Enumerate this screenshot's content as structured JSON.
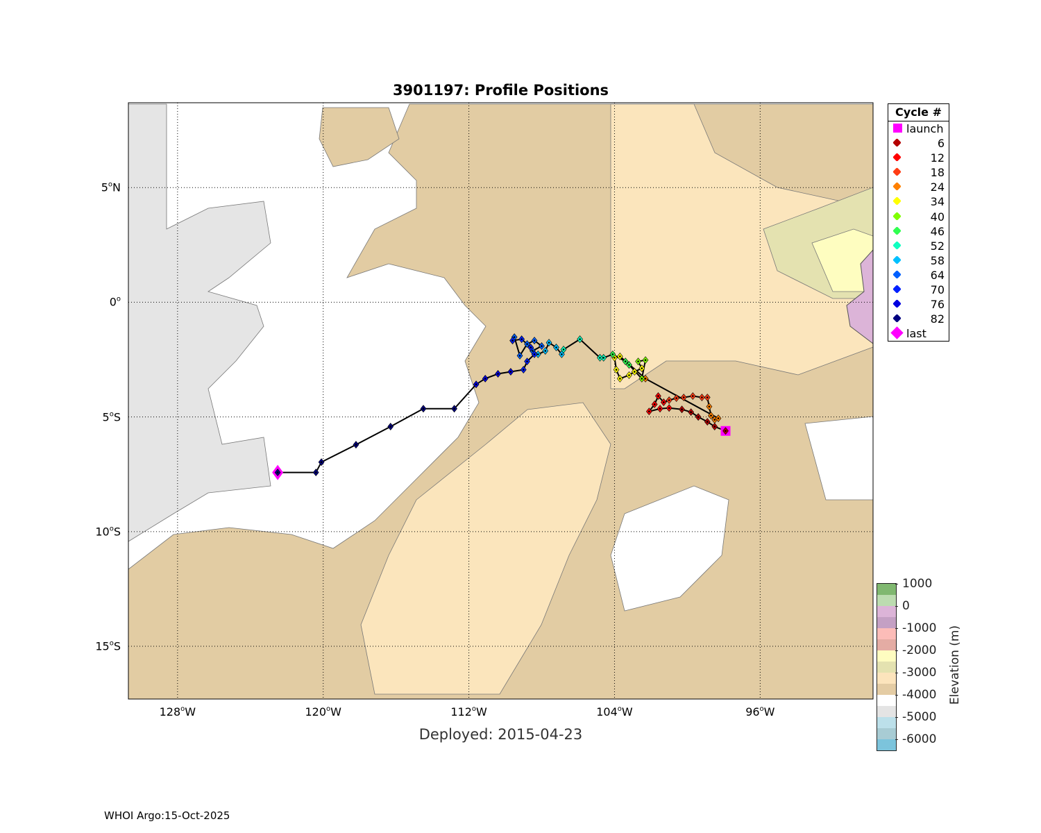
{
  "chart_data": {
    "type": "scatter",
    "title": "3901197: Profile Positions",
    "subtitle": "Deployed: 2015-04-23",
    "xlim": [
      -130.7,
      -89.8
    ],
    "ylim": [
      -17.3,
      8.7
    ],
    "grid": true,
    "x_ticks": [
      {
        "value": -128,
        "num": "128",
        "hemi": "W"
      },
      {
        "value": -120,
        "num": "120",
        "hemi": "W"
      },
      {
        "value": -112,
        "num": "112",
        "hemi": "W"
      },
      {
        "value": -104,
        "num": "104",
        "hemi": "W"
      },
      {
        "value": -96,
        "num": "96",
        "hemi": "W"
      }
    ],
    "y_ticks": [
      {
        "value": 5,
        "num": "5",
        "hemi": "N"
      },
      {
        "value": 0,
        "num": "0",
        "hemi": ""
      },
      {
        "value": -5,
        "num": "5",
        "hemi": "S"
      },
      {
        "value": -10,
        "num": "10",
        "hemi": "S"
      },
      {
        "value": -15,
        "num": "15",
        "hemi": "S"
      }
    ],
    "points": [
      [
        -97.9,
        -5.61,
        1
      ],
      [
        -98.5,
        -5.42,
        2
      ],
      [
        -98.9,
        -5.21,
        3
      ],
      [
        -99.4,
        -5.0,
        4
      ],
      [
        -99.8,
        -4.79,
        5
      ],
      [
        -100.3,
        -4.67,
        6
      ],
      [
        -101.0,
        -4.61,
        7
      ],
      [
        -101.5,
        -4.64,
        8
      ],
      [
        -102.1,
        -4.76,
        9
      ],
      [
        -101.8,
        -4.45,
        10
      ],
      [
        -101.6,
        -4.09,
        11
      ],
      [
        -101.3,
        -4.36,
        12
      ],
      [
        -101.0,
        -4.27,
        13
      ],
      [
        -100.6,
        -4.18,
        14
      ],
      [
        -100.2,
        -4.15,
        15
      ],
      [
        -99.7,
        -4.09,
        16
      ],
      [
        -99.2,
        -4.15,
        17
      ],
      [
        -98.9,
        -4.15,
        18
      ],
      [
        -98.8,
        -4.55,
        19
      ],
      [
        -98.7,
        -4.94,
        20
      ],
      [
        -98.5,
        -5.12,
        21
      ],
      [
        -98.3,
        -5.06,
        22
      ],
      [
        -102.3,
        -3.33,
        24
      ],
      [
        -103.7,
        -2.36,
        26
      ],
      [
        -104.0,
        -2.42,
        27
      ],
      [
        -103.9,
        -2.94,
        28
      ],
      [
        -103.7,
        -3.33,
        30
      ],
      [
        -103.2,
        -3.18,
        31
      ],
      [
        -102.9,
        -3.03,
        33
      ],
      [
        -102.5,
        -2.88,
        34
      ],
      [
        -102.7,
        -2.58,
        36
      ],
      [
        -102.3,
        -2.52,
        38
      ],
      [
        -102.5,
        -3.33,
        40
      ],
      [
        -103.2,
        -2.73,
        42
      ],
      [
        -103.4,
        -2.58,
        44
      ],
      [
        -104.1,
        -2.27,
        46
      ],
      [
        -104.6,
        -2.42,
        48
      ],
      [
        -104.8,
        -2.42,
        50
      ],
      [
        -105.9,
        -1.61,
        51
      ],
      [
        -106.8,
        -2.06,
        52
      ],
      [
        -106.9,
        -2.27,
        53
      ],
      [
        -107.2,
        -1.97,
        54
      ],
      [
        -107.6,
        -1.76,
        56
      ],
      [
        -107.8,
        -2.12,
        57
      ],
      [
        -108.2,
        -2.27,
        58
      ],
      [
        -108.5,
        -2.12,
        59
      ],
      [
        -108.0,
        -1.91,
        60
      ],
      [
        -108.4,
        -1.67,
        61
      ],
      [
        -108.8,
        -1.82,
        62
      ],
      [
        -109.2,
        -2.33,
        63
      ],
      [
        -109.5,
        -1.52,
        64
      ],
      [
        -109.6,
        -1.67,
        65
      ],
      [
        -109.1,
        -1.61,
        66
      ],
      [
        -108.6,
        -1.97,
        67
      ],
      [
        -108.4,
        -2.27,
        68
      ],
      [
        -108.8,
        -2.58,
        69
      ],
      [
        -109.0,
        -2.94,
        70
      ],
      [
        -109.7,
        -3.03,
        72
      ],
      [
        -110.4,
        -3.12,
        73
      ],
      [
        -111.1,
        -3.33,
        75
      ],
      [
        -111.6,
        -3.58,
        76
      ],
      [
        -112.8,
        -4.64,
        78
      ],
      [
        -114.5,
        -4.64,
        79
      ],
      [
        -116.3,
        -5.42,
        80
      ],
      [
        -118.2,
        -6.21,
        81
      ],
      [
        -120.1,
        -6.97,
        82
      ],
      [
        -120.4,
        -7.42,
        83
      ],
      [
        -122.5,
        -7.42,
        84
      ]
    ]
  },
  "legend": {
    "title": "Cycle #",
    "launch": {
      "label": "launch",
      "color": "#ff00ff"
    },
    "last": {
      "label": "last",
      "color": "#ff00ff"
    },
    "items": [
      {
        "label": "6",
        "max": 6,
        "color": "#b40000"
      },
      {
        "label": "12",
        "max": 12,
        "color": "#ff0000"
      },
      {
        "label": "18",
        "max": 18,
        "color": "#ff3c14"
      },
      {
        "label": "24",
        "max": 24,
        "color": "#ff8000"
      },
      {
        "label": "34",
        "max": 34,
        "color": "#ffff00"
      },
      {
        "label": "40",
        "max": 40,
        "color": "#80ff00"
      },
      {
        "label": "46",
        "max": 46,
        "color": "#30ff50"
      },
      {
        "label": "52",
        "max": 52,
        "color": "#10ffc0"
      },
      {
        "label": "58",
        "max": 58,
        "color": "#00c0ff"
      },
      {
        "label": "64",
        "max": 64,
        "color": "#0060ff"
      },
      {
        "label": "70",
        "max": 70,
        "color": "#0020ff"
      },
      {
        "label": "76",
        "max": 76,
        "color": "#0000e0"
      },
      {
        "label": "82",
        "max": 999,
        "color": "#000080"
      }
    ]
  },
  "colorbar": {
    "label": "Elevation (m)",
    "ticks": [
      "1000",
      "0",
      "-1000",
      "-2000",
      "-3000",
      "-4000",
      "-5000",
      "-6000"
    ],
    "bands": [
      "#80b870",
      "#bcdcb0",
      "#dcb4d8",
      "#c4a0c4",
      "#fcbcb8",
      "#e4aca4",
      "#fefcc0",
      "#e4e2b0",
      "#fce4bc",
      "#e4cca4",
      "#ffffff",
      "#e4e4e4",
      "#bce0ea",
      "#a8ccd4",
      "#7cc4dc"
    ]
  },
  "footer": "WHOI Argo:15-Oct-2025"
}
